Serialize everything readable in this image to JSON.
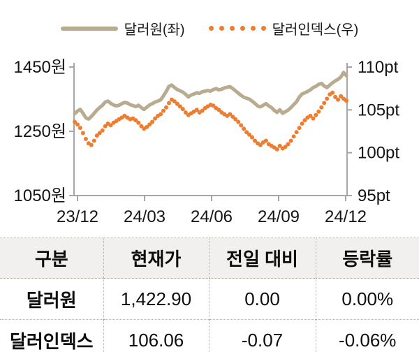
{
  "legend": {
    "series1": "달러원(좌)",
    "series2": "달러인덱스(우)"
  },
  "chart_data": {
    "type": "line",
    "title": "",
    "grid": false,
    "legend_position": "top",
    "x_ticks": [
      "23/12",
      "24/03",
      "24/06",
      "24/09",
      "24/12"
    ],
    "x_tick_months": [
      0,
      3,
      6,
      9,
      12
    ],
    "x_span_months": 12.17,
    "left_axis": {
      "tick_labels": [
        "1450원",
        "1250원",
        "1050원"
      ],
      "tick_values": [
        1450,
        1250,
        1050
      ],
      "min": 1050,
      "max": 1450,
      "unit": "원"
    },
    "right_axis": {
      "tick_labels": [
        "110pt",
        "105pt",
        "100pt",
        "95pt"
      ],
      "tick_values": [
        110,
        105,
        100,
        95
      ],
      "min": 95,
      "max": 110,
      "unit": "pt"
    },
    "series": [
      {
        "name": "달러원(좌)",
        "axis": "left",
        "style": "line",
        "color": "#b9ab90",
        "values": [
          1305,
          1313,
          1318,
          1306,
          1292,
          1288,
          1296,
          1306,
          1316,
          1324,
          1331,
          1341,
          1344,
          1337,
          1332,
          1329,
          1331,
          1336,
          1340,
          1338,
          1333,
          1330,
          1327,
          1331,
          1324,
          1318,
          1325,
          1332,
          1336,
          1341,
          1344,
          1348,
          1360,
          1374,
          1390,
          1394,
          1386,
          1380,
          1376,
          1372,
          1365,
          1357,
          1363,
          1366,
          1370,
          1368,
          1373,
          1375,
          1377,
          1375,
          1380,
          1383,
          1379,
          1381,
          1385,
          1387,
          1389,
          1383,
          1376,
          1369,
          1362,
          1356,
          1353,
          1350,
          1344,
          1337,
          1329,
          1326,
          1331,
          1336,
          1329,
          1324,
          1315,
          1309,
          1317,
          1306,
          1311,
          1316,
          1324,
          1333,
          1342,
          1356,
          1366,
          1370,
          1374,
          1379,
          1386,
          1390,
          1396,
          1399,
          1391,
          1386,
          1394,
          1401,
          1407,
          1412,
          1419,
          1433,
          1423
        ]
      },
      {
        "name": "달러인덱스(우)",
        "axis": "right",
        "style": "dots",
        "color": "#ed7d31",
        "values": [
          103.6,
          103.3,
          102.9,
          102.3,
          101.6,
          101.1,
          100.9,
          101.4,
          102.0,
          102.3,
          102.6,
          103.1,
          103.4,
          103.2,
          103.5,
          103.7,
          103.9,
          104.1,
          104.3,
          104.1,
          103.9,
          104.0,
          103.8,
          103.5,
          103.1,
          102.8,
          103.0,
          103.3,
          103.6,
          104.0,
          104.3,
          104.5,
          104.9,
          105.3,
          105.8,
          106.2,
          106.0,
          105.7,
          105.4,
          105.1,
          104.7,
          104.4,
          104.6,
          104.8,
          105.0,
          104.7,
          104.9,
          105.2,
          105.4,
          105.6,
          105.5,
          105.2,
          105.0,
          104.7,
          104.5,
          104.3,
          104.5,
          104.2,
          103.9,
          103.6,
          103.2,
          102.8,
          102.4,
          102.1,
          101.8,
          101.4,
          101.1,
          100.9,
          101.2,
          101.4,
          101.0,
          100.8,
          100.6,
          100.4,
          100.8,
          100.5,
          100.7,
          101.0,
          101.4,
          101.9,
          102.4,
          102.9,
          103.4,
          103.8,
          104.1,
          104.3,
          104.0,
          104.4,
          104.8,
          105.3,
          105.8,
          106.3,
          106.8,
          107.0,
          106.5,
          106.2,
          106.6,
          106.3,
          106.06
        ]
      }
    ]
  },
  "table": {
    "headers": [
      "구분",
      "현재가",
      "전일 대비",
      "등락률"
    ],
    "rows": [
      {
        "label": "달러원",
        "current": "1,422.90",
        "change": "0.00",
        "change_pct": "0.00%"
      },
      {
        "label": "달러인덱스",
        "current": "106.06",
        "change": "-0.07",
        "change_pct": "-0.06%"
      }
    ]
  },
  "colors": {
    "line_series": "#b9ab90",
    "dot_series": "#ed7d31",
    "axis": "#a6a6a6",
    "text": "#141414",
    "table_border": "#b3afa7",
    "header_bg": "#f1f0ee"
  }
}
